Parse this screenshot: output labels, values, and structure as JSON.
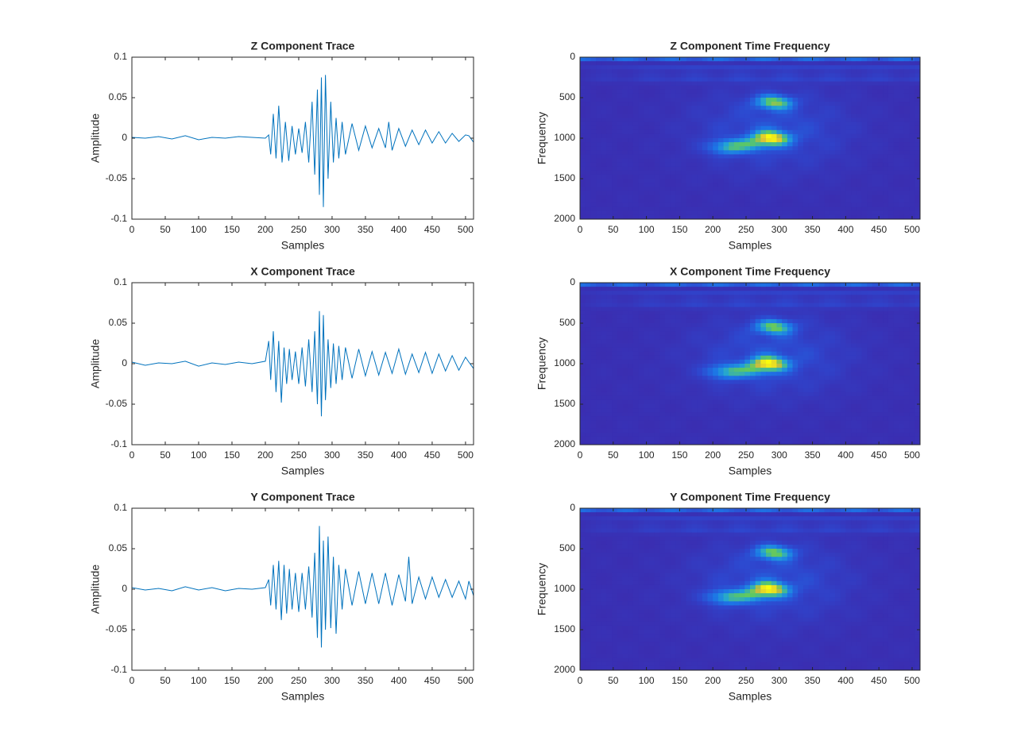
{
  "figure": {
    "colors": {
      "trace": "#0072BD",
      "axes": "#262626",
      "colormap": [
        "#3E26A8",
        "#2E46CE",
        "#1D74E6",
        "#22A3D7",
        "#5EC962",
        "#D7BB3B",
        "#F9FB0E"
      ]
    }
  },
  "chart_data": [
    {
      "id": "z-trace",
      "type": "line",
      "title": "Z Component Trace",
      "xlabel": "Samples",
      "ylabel": "Amplitude",
      "xlim": [
        0,
        512
      ],
      "ylim": [
        -0.1,
        0.1
      ],
      "xticks": [
        0,
        50,
        100,
        150,
        200,
        250,
        300,
        350,
        400,
        450,
        500
      ],
      "yticks": [
        -0.1,
        -0.05,
        0,
        0.05,
        0.1
      ],
      "ytick_labels": [
        "-0.1",
        "-0.05",
        "0",
        "0.05",
        "0.1"
      ],
      "grid": false,
      "series": [
        {
          "x": [
            0,
            20,
            40,
            60,
            80,
            100,
            120,
            140,
            160,
            180,
            200,
            205,
            208,
            212,
            216,
            220,
            225,
            230,
            235,
            240,
            245,
            250,
            255,
            260,
            265,
            270,
            274,
            278,
            281,
            284,
            287,
            290,
            294,
            298,
            302,
            306,
            310,
            315,
            320,
            330,
            340,
            350,
            360,
            370,
            380,
            385,
            390,
            400,
            410,
            420,
            430,
            440,
            450,
            460,
            470,
            480,
            490,
            500,
            505,
            512
          ],
          "y": [
            0.001,
            0.0,
            0.002,
            -0.001,
            0.003,
            -0.002,
            0.001,
            0.0,
            0.002,
            0.001,
            0.0,
            0.004,
            -0.02,
            0.03,
            -0.025,
            0.04,
            -0.03,
            0.02,
            -0.028,
            0.015,
            -0.02,
            0.012,
            -0.018,
            0.02,
            -0.03,
            0.045,
            -0.045,
            0.06,
            -0.07,
            0.075,
            -0.085,
            0.078,
            -0.05,
            0.045,
            -0.03,
            0.025,
            -0.025,
            0.02,
            -0.02,
            0.018,
            -0.015,
            0.015,
            -0.012,
            0.012,
            -0.012,
            0.02,
            -0.015,
            0.012,
            -0.01,
            0.01,
            -0.008,
            0.01,
            -0.006,
            0.008,
            -0.006,
            0.006,
            -0.004,
            0.004,
            0.003,
            -0.005
          ]
        }
      ]
    },
    {
      "id": "z-tf",
      "type": "heatmap",
      "title": "Z Component Time Frequency",
      "xlabel": "Samples",
      "ylabel": "Frequency",
      "xlim": [
        0,
        512
      ],
      "ylim": [
        0,
        2000
      ],
      "y_reversed": true,
      "xticks": [
        0,
        50,
        100,
        150,
        200,
        250,
        300,
        350,
        400,
        450,
        500
      ],
      "yticks": [
        0,
        500,
        1000,
        1500,
        2000
      ],
      "ytick_labels": [
        "0",
        "500",
        "1000",
        "1500",
        "2000"
      ],
      "hotspots": [
        {
          "x": 288,
          "f": 1000,
          "intensity": 1.0
        },
        {
          "x": 292,
          "f": 560,
          "intensity": 0.75
        },
        {
          "x": 220,
          "f": 1110,
          "intensity": 0.55
        },
        {
          "x": 262,
          "f": 1080,
          "intensity": 0.4
        }
      ]
    },
    {
      "id": "x-trace",
      "type": "line",
      "title": "X Component Trace",
      "xlabel": "Samples",
      "ylabel": "Amplitude",
      "xlim": [
        0,
        512
      ],
      "ylim": [
        -0.1,
        0.1
      ],
      "xticks": [
        0,
        50,
        100,
        150,
        200,
        250,
        300,
        350,
        400,
        450,
        500
      ],
      "yticks": [
        -0.1,
        -0.05,
        0,
        0.05,
        0.1
      ],
      "ytick_labels": [
        "-0.1",
        "-0.05",
        "0",
        "0.05",
        "0.1"
      ],
      "grid": false,
      "series": [
        {
          "x": [
            0,
            20,
            40,
            60,
            80,
            100,
            120,
            140,
            160,
            180,
            200,
            205,
            208,
            212,
            216,
            220,
            224,
            228,
            232,
            236,
            240,
            245,
            250,
            255,
            260,
            265,
            270,
            274,
            278,
            281,
            284,
            287,
            290,
            294,
            298,
            302,
            306,
            310,
            315,
            320,
            330,
            340,
            350,
            360,
            370,
            380,
            390,
            400,
            410,
            420,
            430,
            440,
            450,
            460,
            470,
            480,
            490,
            500,
            505,
            512
          ],
          "y": [
            0.002,
            -0.002,
            0.001,
            0.0,
            0.003,
            -0.003,
            0.001,
            -0.001,
            0.002,
            0.0,
            0.003,
            0.028,
            -0.02,
            0.04,
            -0.035,
            0.028,
            -0.048,
            0.02,
            -0.025,
            0.018,
            -0.02,
            0.015,
            -0.025,
            0.02,
            -0.028,
            0.03,
            -0.035,
            0.04,
            -0.05,
            0.065,
            -0.065,
            0.06,
            -0.045,
            0.03,
            -0.03,
            0.025,
            -0.025,
            0.022,
            -0.02,
            0.02,
            -0.018,
            0.018,
            -0.015,
            0.015,
            -0.014,
            0.014,
            -0.012,
            0.018,
            -0.013,
            0.012,
            -0.011,
            0.014,
            -0.012,
            0.012,
            -0.009,
            0.01,
            -0.008,
            0.008,
            0.002,
            -0.006
          ]
        }
      ]
    },
    {
      "id": "x-tf",
      "type": "heatmap",
      "title": "X Component Time Frequency",
      "xlabel": "Samples",
      "ylabel": "Frequency",
      "xlim": [
        0,
        512
      ],
      "ylim": [
        0,
        2000
      ],
      "y_reversed": true,
      "xticks": [
        0,
        50,
        100,
        150,
        200,
        250,
        300,
        350,
        400,
        450,
        500
      ],
      "yticks": [
        0,
        500,
        1000,
        1500,
        2000
      ],
      "ytick_labels": [
        "0",
        "500",
        "1000",
        "1500",
        "2000"
      ],
      "hotspots": [
        {
          "x": 285,
          "f": 1000,
          "intensity": 1.0
        },
        {
          "x": 292,
          "f": 550,
          "intensity": 0.72
        },
        {
          "x": 218,
          "f": 1100,
          "intensity": 0.55
        },
        {
          "x": 262,
          "f": 1080,
          "intensity": 0.4
        }
      ]
    },
    {
      "id": "y-trace",
      "type": "line",
      "title": "Y Component Trace",
      "xlabel": "Samples",
      "ylabel": "Amplitude",
      "xlim": [
        0,
        512
      ],
      "ylim": [
        -0.1,
        0.1
      ],
      "xticks": [
        0,
        50,
        100,
        150,
        200,
        250,
        300,
        350,
        400,
        450,
        500
      ],
      "yticks": [
        -0.1,
        -0.05,
        0,
        0.05,
        0.1
      ],
      "ytick_labels": [
        "-0.1",
        "-0.05",
        "0",
        "0.05",
        "0.1"
      ],
      "grid": false,
      "series": [
        {
          "x": [
            0,
            20,
            40,
            60,
            80,
            100,
            120,
            140,
            160,
            180,
            200,
            205,
            208,
            212,
            216,
            220,
            224,
            228,
            232,
            236,
            240,
            245,
            250,
            255,
            260,
            265,
            270,
            274,
            278,
            281,
            284,
            287,
            290,
            294,
            298,
            302,
            306,
            310,
            315,
            320,
            330,
            340,
            350,
            360,
            370,
            380,
            390,
            400,
            410,
            415,
            420,
            430,
            440,
            450,
            460,
            470,
            480,
            490,
            500,
            505,
            512
          ],
          "y": [
            0.002,
            -0.001,
            0.001,
            -0.002,
            0.003,
            -0.001,
            0.002,
            -0.002,
            0.001,
            0.0,
            0.002,
            0.012,
            -0.02,
            0.03,
            -0.025,
            0.035,
            -0.038,
            0.03,
            -0.03,
            0.025,
            -0.025,
            0.02,
            -0.028,
            0.02,
            -0.025,
            0.028,
            -0.035,
            0.045,
            -0.06,
            0.078,
            -0.072,
            0.06,
            -0.05,
            0.065,
            -0.048,
            0.04,
            -0.055,
            0.03,
            -0.025,
            0.025,
            -0.02,
            0.022,
            -0.018,
            0.02,
            -0.018,
            0.02,
            -0.02,
            0.018,
            -0.015,
            0.04,
            -0.018,
            0.015,
            -0.012,
            0.015,
            -0.01,
            0.012,
            -0.01,
            0.01,
            -0.012,
            0.01,
            -0.008
          ]
        }
      ]
    },
    {
      "id": "y-tf",
      "type": "heatmap",
      "title": "Y Component Time Frequency",
      "xlabel": "Samples",
      "ylabel": "Frequency",
      "xlim": [
        0,
        512
      ],
      "ylim": [
        0,
        2000
      ],
      "y_reversed": true,
      "xticks": [
        0,
        50,
        100,
        150,
        200,
        250,
        300,
        350,
        400,
        450,
        500
      ],
      "yticks": [
        0,
        500,
        1000,
        1500,
        2000
      ],
      "ytick_labels": [
        "0",
        "500",
        "1000",
        "1500",
        "2000"
      ],
      "hotspots": [
        {
          "x": 285,
          "f": 1000,
          "intensity": 1.0
        },
        {
          "x": 292,
          "f": 550,
          "intensity": 0.72
        },
        {
          "x": 218,
          "f": 1100,
          "intensity": 0.55
        },
        {
          "x": 262,
          "f": 1080,
          "intensity": 0.4
        }
      ]
    }
  ]
}
